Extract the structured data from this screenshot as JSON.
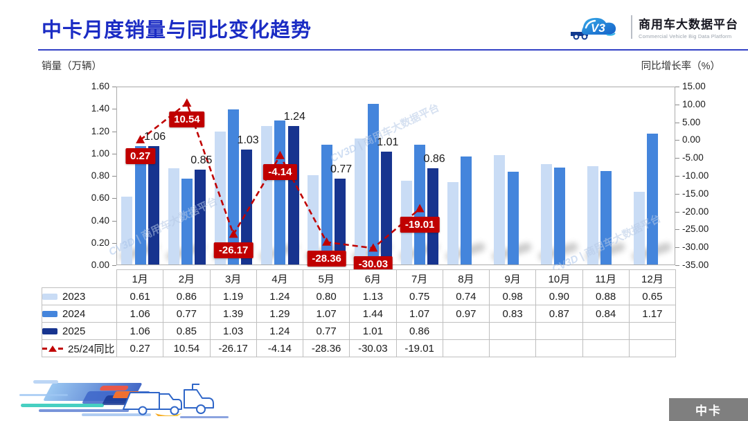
{
  "header": {
    "title": "中卡月度销量与同比变化趋势",
    "brand_cn": "商用车大数据平台",
    "brand_en": "Commercial Vehicle Big Data Platform",
    "logo_icon": "truck-cloud-v3-logo"
  },
  "axes": {
    "left_label": "销量（万辆）",
    "right_label": "同比增长率（%）"
  },
  "watermark": {
    "text": "商用车大数据平台",
    "logo_text": "CV3D"
  },
  "chart_data": {
    "type": "bar+line",
    "title": "中卡月度销量与同比变化趋势",
    "categories": [
      "1月",
      "2月",
      "3月",
      "4月",
      "5月",
      "6月",
      "7月",
      "8月",
      "9月",
      "10月",
      "11月",
      "12月"
    ],
    "series": [
      {
        "name": "2023",
        "type": "bar",
        "color": "#c9dcf5",
        "values": [
          0.61,
          0.86,
          1.19,
          1.24,
          0.8,
          1.13,
          0.75,
          0.74,
          0.98,
          0.9,
          0.88,
          0.65
        ]
      },
      {
        "name": "2024",
        "type": "bar",
        "color": "#4485dc",
        "values": [
          1.06,
          0.77,
          1.39,
          1.29,
          1.07,
          1.44,
          1.07,
          0.97,
          0.83,
          0.87,
          0.84,
          1.17
        ]
      },
      {
        "name": "2025",
        "type": "bar",
        "color": "#17348f",
        "labeled": true,
        "values": [
          1.06,
          0.85,
          1.03,
          1.24,
          0.77,
          1.01,
          0.86,
          null,
          null,
          null,
          null,
          null
        ]
      },
      {
        "name": "25/24同比",
        "type": "line",
        "color": "#c00000",
        "labeled": true,
        "values": [
          0.27,
          10.54,
          -26.17,
          -4.14,
          -28.36,
          -30.03,
          -19.01,
          null,
          null,
          null,
          null,
          null
        ]
      }
    ],
    "left_axis": {
      "min": 0,
      "max": 1.6,
      "step": 0.2,
      "decimals": 2
    },
    "right_axis": {
      "min": -35,
      "max": 15,
      "step": 5,
      "decimals": 2
    },
    "grid": false,
    "legend_position": "table-left"
  },
  "table": {
    "months": [
      "1月",
      "2月",
      "3月",
      "4月",
      "5月",
      "6月",
      "7月",
      "8月",
      "9月",
      "10月",
      "11月",
      "12月"
    ],
    "rows": [
      {
        "label": "2023",
        "glyph": "bar",
        "color": "#c9dcf5",
        "values": [
          "0.61",
          "0.86",
          "1.19",
          "1.24",
          "0.80",
          "1.13",
          "0.75",
          "0.74",
          "0.98",
          "0.90",
          "0.88",
          "0.65"
        ]
      },
      {
        "label": "2024",
        "glyph": "bar",
        "color": "#4485dc",
        "values": [
          "1.06",
          "0.77",
          "1.39",
          "1.29",
          "1.07",
          "1.44",
          "1.07",
          "0.97",
          "0.83",
          "0.87",
          "0.84",
          "1.17"
        ]
      },
      {
        "label": "2025",
        "glyph": "bar",
        "color": "#17348f",
        "values": [
          "1.06",
          "0.85",
          "1.03",
          "1.24",
          "0.77",
          "1.01",
          "0.86",
          "",
          "",
          "",
          "",
          ""
        ]
      },
      {
        "label": "25/24同比",
        "glyph": "line",
        "color": "#c00000",
        "values": [
          "0.27",
          "10.54",
          "-26.17",
          "-4.14",
          "-28.36",
          "-30.03",
          "-19.01",
          "",
          "",
          "",
          "",
          ""
        ]
      }
    ]
  },
  "footer": {
    "tab_label": "中卡"
  },
  "colors": {
    "title": "#1b2cc4",
    "rule": "#3240c6",
    "bar_2023": "#c9dcf5",
    "bar_2024": "#4485dc",
    "bar_2025": "#17348f",
    "yoy_red": "#c00000",
    "plot_border": "#ababab",
    "table_border": "#bfbfbf",
    "tab_gray": "#7f7f7f",
    "watermark": "#b6c9e6"
  }
}
